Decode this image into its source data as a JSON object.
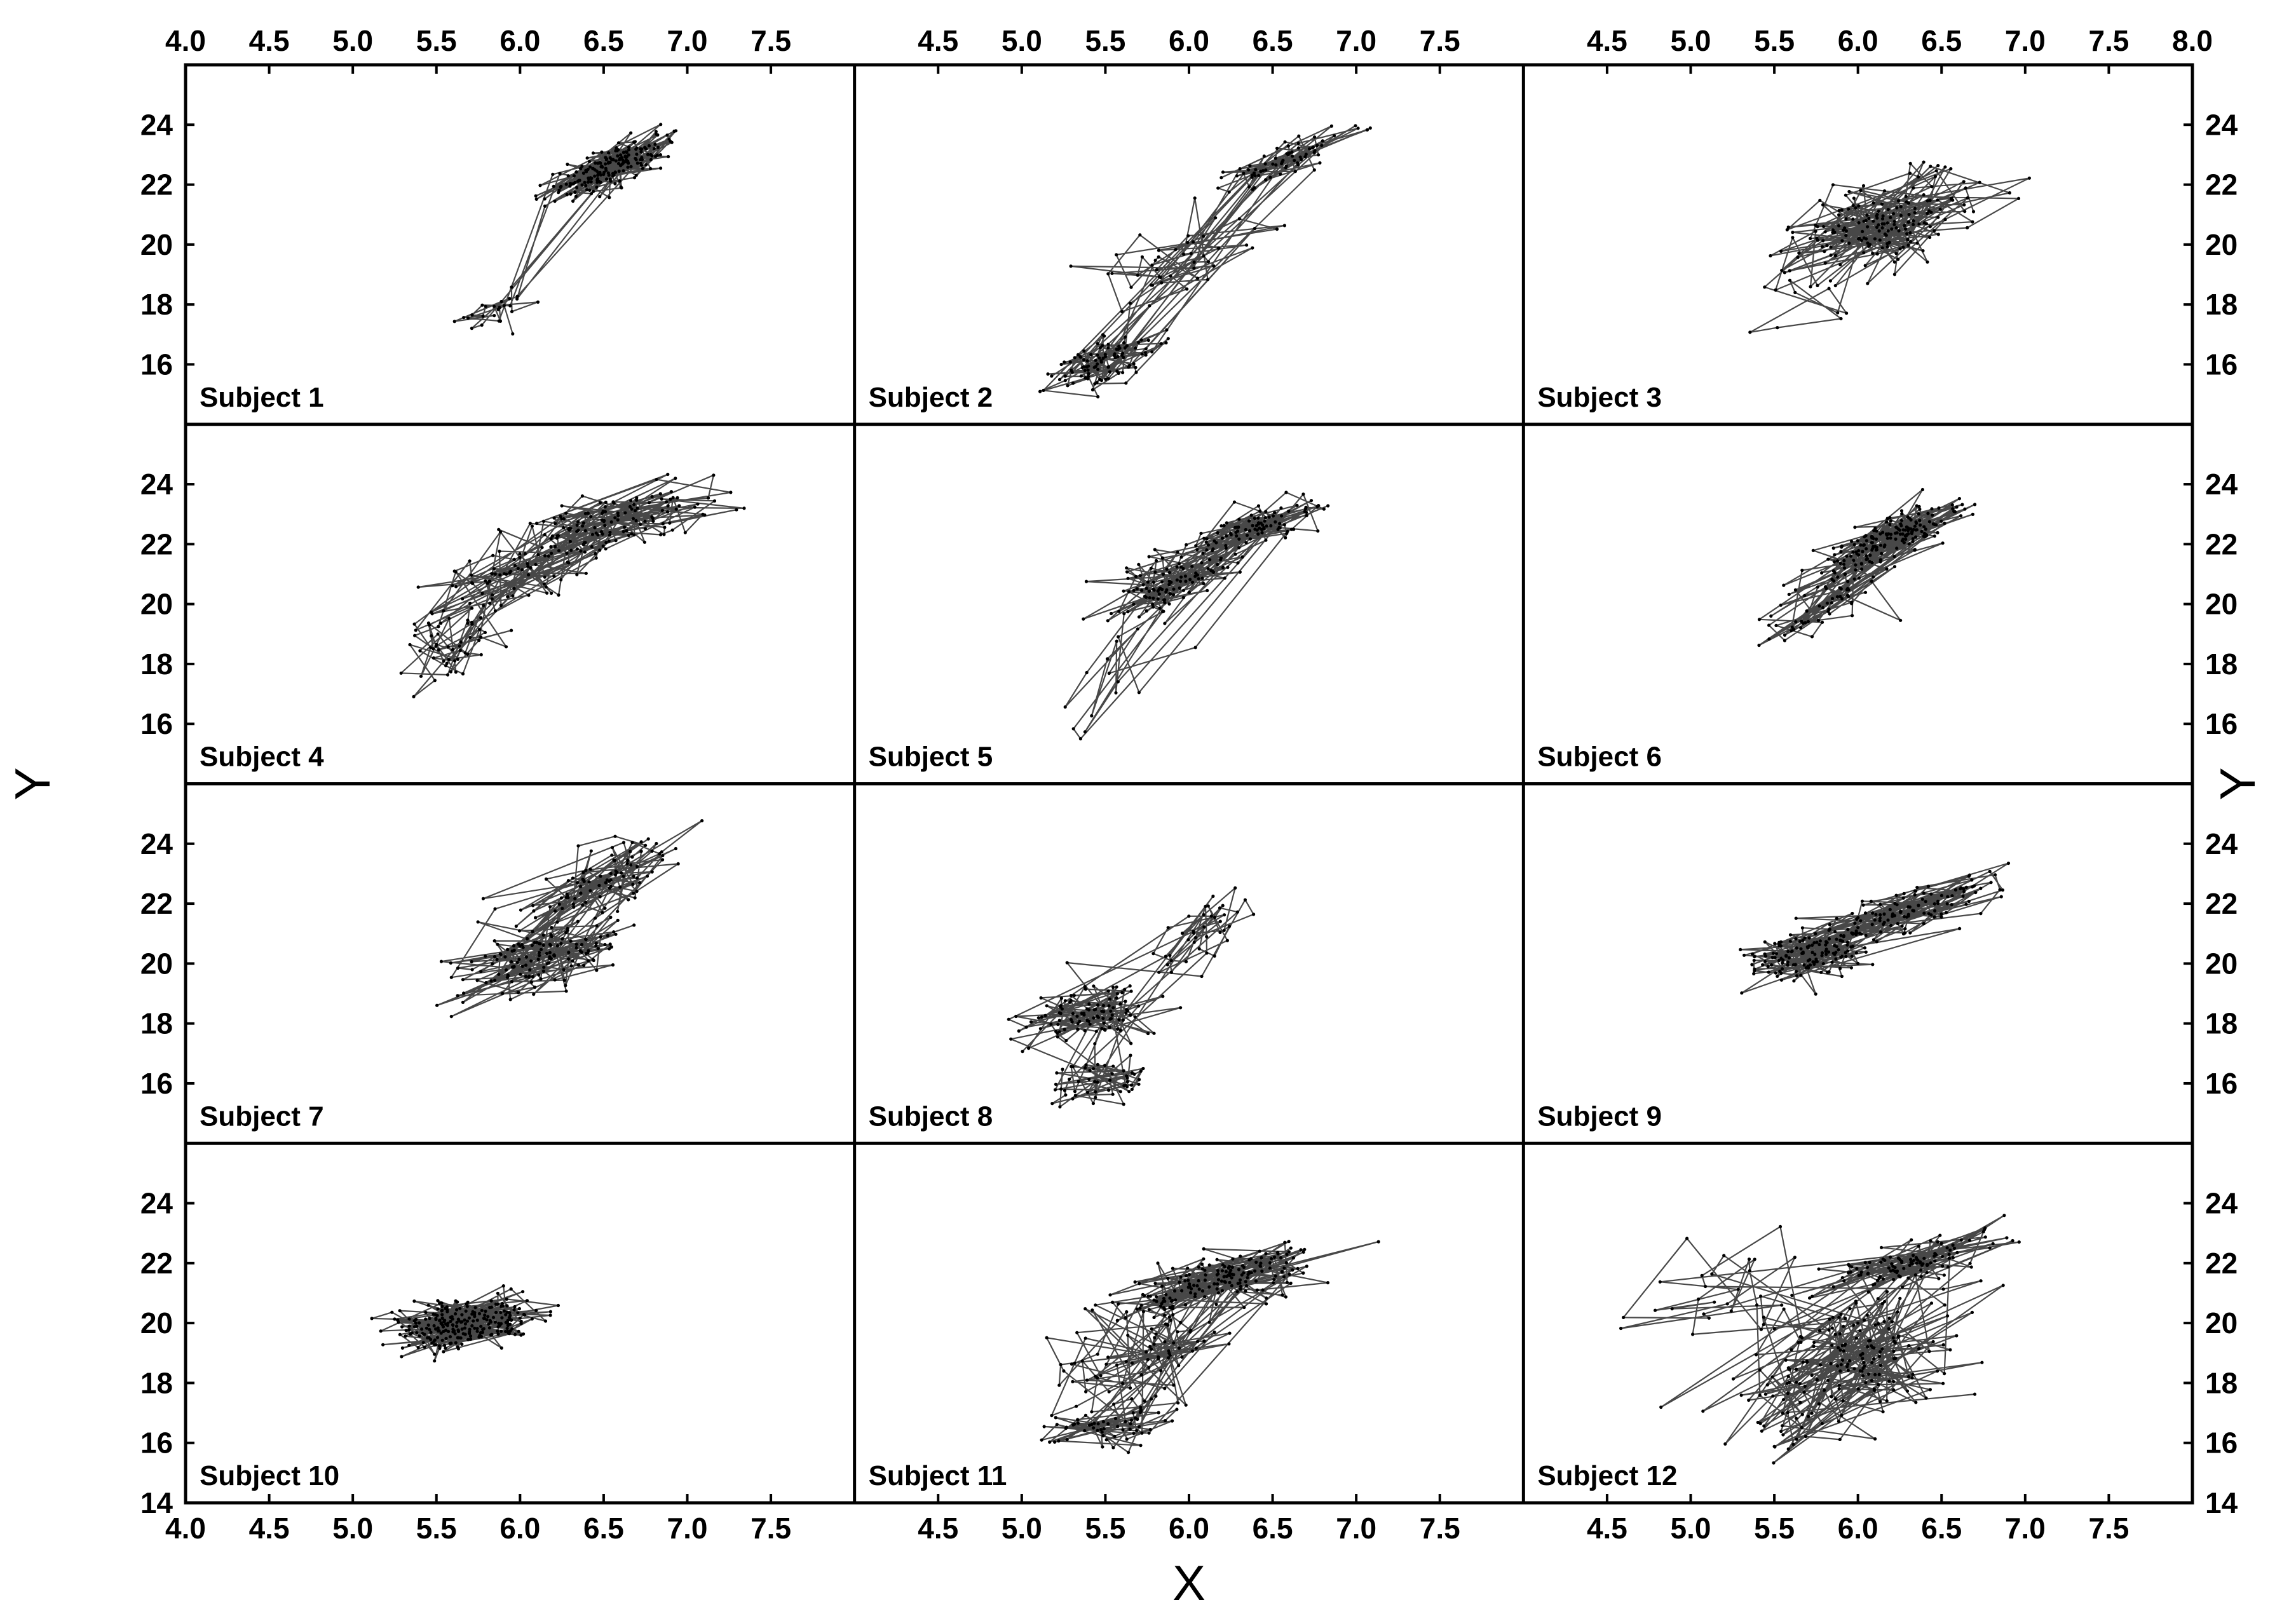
{
  "chart_data": {
    "type": "line",
    "layout": {
      "rows": 4,
      "cols": 3
    },
    "xlabel": "X",
    "ylabel": "Y",
    "xlim": [
      4.0,
      8.0
    ],
    "ylim": [
      14,
      26
    ],
    "grid": false,
    "x_ticks": {
      "top": [
        [
          "4.0",
          "4.5",
          "5.0",
          "5.5",
          "6.0",
          "6.5",
          "7.0",
          "7.5"
        ],
        [
          "4.5",
          "5.0",
          "5.5",
          "6.0",
          "6.5",
          "7.0",
          "7.5"
        ],
        [
          "4.5",
          "5.0",
          "5.5",
          "6.0",
          "6.5",
          "7.0",
          "7.5",
          "8.0"
        ]
      ],
      "bottom": [
        [
          "4.0",
          "4.5",
          "5.0",
          "5.5",
          "6.0",
          "6.5",
          "7.0",
          "7.5"
        ],
        [
          "4.5",
          "5.0",
          "5.5",
          "6.0",
          "6.5",
          "7.0",
          "7.5"
        ],
        [
          "4.5",
          "5.0",
          "5.5",
          "6.0",
          "6.5",
          "7.0",
          "7.5"
        ]
      ]
    },
    "y_ticks": {
      "rows_1_to_3": [
        "16",
        "18",
        "20",
        "22",
        "24"
      ],
      "row_4": [
        "14",
        "16",
        "18",
        "20",
        "22",
        "24"
      ]
    },
    "panels": [
      {
        "label": "Subject 1",
        "n_points": 220,
        "clusters": [
          {
            "x": 6.55,
            "y": 22.6,
            "sx": 0.18,
            "sy": 0.55,
            "rho": 0.75,
            "w": 0.8
          },
          {
            "x": 5.85,
            "y": 17.7,
            "sx": 0.12,
            "sy": 0.4,
            "rho": 0.5,
            "w": 0.2
          }
        ]
      },
      {
        "label": "Subject 2",
        "n_points": 220,
        "clusters": [
          {
            "x": 6.6,
            "y": 22.9,
            "sx": 0.2,
            "sy": 0.5,
            "rho": 0.75,
            "w": 0.45
          },
          {
            "x": 6.0,
            "y": 19.8,
            "sx": 0.25,
            "sy": 0.9,
            "rho": 0.6,
            "w": 0.2
          },
          {
            "x": 5.5,
            "y": 16.1,
            "sx": 0.18,
            "sy": 0.5,
            "rho": 0.6,
            "w": 0.35
          }
        ]
      },
      {
        "label": "Subject 3",
        "n_points": 200,
        "clusters": [
          {
            "x": 6.15,
            "y": 20.6,
            "sx": 0.3,
            "sy": 0.9,
            "rho": 0.55,
            "w": 0.85
          },
          {
            "x": 5.6,
            "y": 18.0,
            "sx": 0.18,
            "sy": 0.6,
            "rho": 0.3,
            "w": 0.15
          }
        ]
      },
      {
        "label": "Subject 4",
        "n_points": 260,
        "clusters": [
          {
            "x": 6.6,
            "y": 22.8,
            "sx": 0.3,
            "sy": 0.6,
            "rho": 0.6,
            "w": 0.4
          },
          {
            "x": 6.0,
            "y": 21.2,
            "sx": 0.3,
            "sy": 0.8,
            "rho": 0.7,
            "w": 0.4
          },
          {
            "x": 5.6,
            "y": 18.8,
            "sx": 0.15,
            "sy": 0.8,
            "rho": 0.5,
            "w": 0.2
          }
        ]
      },
      {
        "label": "Subject 5",
        "n_points": 220,
        "clusters": [
          {
            "x": 6.4,
            "y": 22.6,
            "sx": 0.2,
            "sy": 0.5,
            "rho": 0.7,
            "w": 0.45
          },
          {
            "x": 5.9,
            "y": 20.8,
            "sx": 0.2,
            "sy": 0.7,
            "rho": 0.6,
            "w": 0.35
          },
          {
            "x": 5.6,
            "y": 17.5,
            "sx": 0.2,
            "sy": 1.2,
            "rho": 0.5,
            "w": 0.2
          }
        ]
      },
      {
        "label": "Subject 6",
        "n_points": 240,
        "clusters": [
          {
            "x": 6.2,
            "y": 22.2,
            "sx": 0.22,
            "sy": 0.6,
            "rho": 0.8,
            "w": 0.5
          },
          {
            "x": 5.8,
            "y": 20.0,
            "sx": 0.2,
            "sy": 0.8,
            "rho": 0.75,
            "w": 0.5
          }
        ]
      },
      {
        "label": "Subject 7",
        "n_points": 240,
        "clusters": [
          {
            "x": 6.5,
            "y": 22.8,
            "sx": 0.25,
            "sy": 0.7,
            "rho": 0.7,
            "w": 0.55
          },
          {
            "x": 6.1,
            "y": 20.2,
            "sx": 0.25,
            "sy": 0.6,
            "rho": 0.6,
            "w": 0.45
          }
        ]
      },
      {
        "label": "Subject 8",
        "n_points": 200,
        "clusters": [
          {
            "x": 6.1,
            "y": 21.0,
            "sx": 0.15,
            "sy": 0.8,
            "rho": 0.6,
            "w": 0.3
          },
          {
            "x": 5.4,
            "y": 18.3,
            "sx": 0.2,
            "sy": 0.5,
            "rho": 0.4,
            "w": 0.4
          },
          {
            "x": 5.5,
            "y": 16.0,
            "sx": 0.2,
            "sy": 0.5,
            "rho": 0.3,
            "w": 0.3
          }
        ]
      },
      {
        "label": "Subject 9",
        "n_points": 260,
        "clusters": [
          {
            "x": 5.7,
            "y": 20.3,
            "sx": 0.22,
            "sy": 0.5,
            "rho": 0.5,
            "w": 0.6
          },
          {
            "x": 6.3,
            "y": 21.8,
            "sx": 0.3,
            "sy": 0.6,
            "rho": 0.75,
            "w": 0.4
          }
        ]
      },
      {
        "label": "Subject 10",
        "n_points": 260,
        "clusters": [
          {
            "x": 5.65,
            "y": 20.0,
            "sx": 0.2,
            "sy": 0.4,
            "rho": 0.3,
            "w": 1.0
          }
        ]
      },
      {
        "label": "Subject 11",
        "n_points": 320,
        "clusters": [
          {
            "x": 6.2,
            "y": 21.5,
            "sx": 0.3,
            "sy": 0.6,
            "rho": 0.7,
            "w": 0.45
          },
          {
            "x": 5.7,
            "y": 19.0,
            "sx": 0.25,
            "sy": 1.0,
            "rho": 0.5,
            "w": 0.4
          },
          {
            "x": 5.5,
            "y": 16.5,
            "sx": 0.2,
            "sy": 0.4,
            "rho": 0.4,
            "w": 0.15
          }
        ]
      },
      {
        "label": "Subject 12",
        "n_points": 340,
        "clusters": [
          {
            "x": 6.3,
            "y": 22.0,
            "sx": 0.25,
            "sy": 0.5,
            "rho": 0.7,
            "w": 0.25
          },
          {
            "x": 5.9,
            "y": 18.5,
            "sx": 0.35,
            "sy": 1.4,
            "rho": 0.55,
            "w": 0.65
          },
          {
            "x": 5.2,
            "y": 21.0,
            "sx": 0.25,
            "sy": 0.8,
            "rho": 0.2,
            "w": 0.1
          }
        ]
      }
    ]
  }
}
